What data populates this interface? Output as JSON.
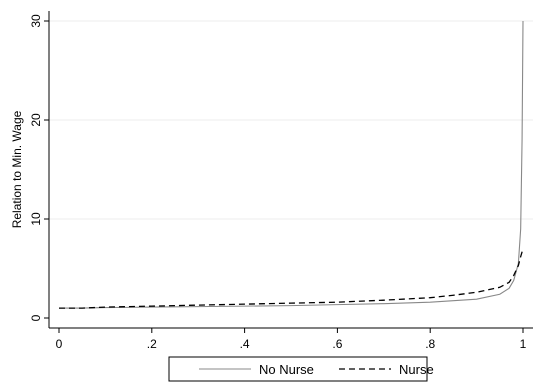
{
  "chart_data": {
    "type": "line",
    "title": "",
    "xlabel": "",
    "ylabel": "Relation to Min. Wage",
    "xlim": [
      0,
      1
    ],
    "ylim": [
      0,
      30
    ],
    "xticks": [
      0,
      0.2,
      0.4,
      0.6,
      0.8,
      1
    ],
    "xtick_labels": [
      "0",
      ".2",
      ".4",
      ".6",
      ".8",
      "1"
    ],
    "yticks": [
      0,
      10,
      20,
      30
    ],
    "ytick_labels": [
      "0",
      "10",
      "20",
      "30"
    ],
    "grid": true,
    "legend_position": "bottom",
    "series": [
      {
        "name": "No Nurse",
        "style": "solid",
        "color": "#888888",
        "x": [
          0,
          0.05,
          0.1,
          0.2,
          0.3,
          0.4,
          0.5,
          0.55,
          0.6,
          0.7,
          0.8,
          0.85,
          0.9,
          0.95,
          0.97,
          0.98,
          0.99,
          0.995,
          0.998,
          1.0
        ],
        "y": [
          1.0,
          1.0,
          1.05,
          1.1,
          1.15,
          1.2,
          1.25,
          1.3,
          1.35,
          1.45,
          1.6,
          1.75,
          1.9,
          2.4,
          3.0,
          3.8,
          5.5,
          9.0,
          18.0,
          30.0
        ]
      },
      {
        "name": "Nurse",
        "style": "dashed",
        "color": "#000000",
        "x": [
          0,
          0.05,
          0.1,
          0.2,
          0.3,
          0.4,
          0.5,
          0.55,
          0.6,
          0.7,
          0.8,
          0.85,
          0.9,
          0.95,
          0.97,
          0.98,
          0.99,
          0.995,
          1.0
        ],
        "y": [
          1.0,
          1.0,
          1.1,
          1.2,
          1.3,
          1.4,
          1.5,
          1.55,
          1.6,
          1.8,
          2.05,
          2.3,
          2.6,
          3.1,
          3.6,
          4.3,
          5.3,
          6.2,
          7.0
        ]
      }
    ]
  }
}
